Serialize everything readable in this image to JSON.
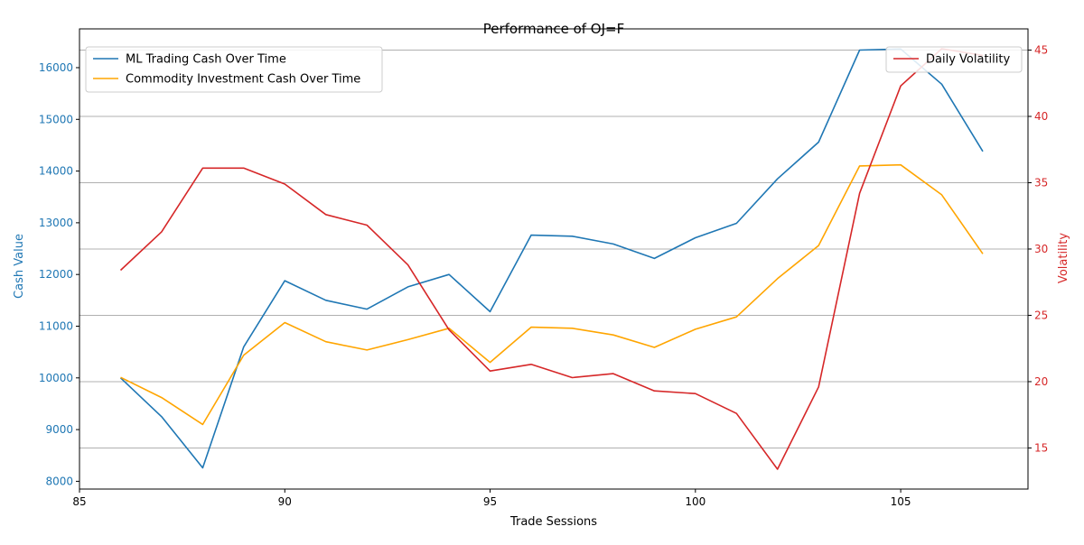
{
  "chart_data": {
    "type": "line",
    "title": "Performance of OJ=F",
    "xlabel": "Trade Sessions",
    "ylabel_left": "Cash Value",
    "ylabel_right": "Volatility",
    "x": [
      86,
      87,
      88,
      89,
      90,
      91,
      92,
      93,
      94,
      95,
      96,
      97,
      98,
      99,
      100,
      101,
      102,
      103,
      104,
      105,
      106,
      107
    ],
    "xlim": [
      85,
      108.1
    ],
    "xticks": [
      85,
      90,
      95,
      100,
      105
    ],
    "ylim_left": [
      7850,
      16750
    ],
    "yticks_left": [
      8000,
      9000,
      10000,
      11000,
      12000,
      13000,
      14000,
      15000,
      16000
    ],
    "ylim_right": [
      11.9,
      46.6
    ],
    "yticks_right": [
      15,
      20,
      25,
      30,
      35,
      40,
      45
    ],
    "grid": "horizontal gridlines at right-axis ticks",
    "legend_left_placement": "top-left",
    "legend_right_placement": "top-right",
    "series": [
      {
        "name": "ML Trading Cash Over Time",
        "axis": "left",
        "color": "#1f77b4",
        "values": [
          10000,
          9250,
          8260,
          10600,
          11880,
          11500,
          11330,
          11760,
          12000,
          11280,
          12760,
          12740,
          12590,
          12310,
          12710,
          12990,
          13850,
          14560,
          16340,
          16360,
          15680,
          14380
        ]
      },
      {
        "name": "Commodity Investment Cash Over Time",
        "axis": "left",
        "color": "#ffa500",
        "values": [
          10010,
          9620,
          9100,
          10440,
          11070,
          10700,
          10540,
          10740,
          10960,
          10300,
          10980,
          10960,
          10830,
          10590,
          10940,
          11180,
          11920,
          12560,
          14100,
          14120,
          13540,
          12400
        ]
      },
      {
        "name": "Daily Volatility",
        "axis": "right",
        "color": "#d62728",
        "values": [
          28.4,
          31.3,
          36.1,
          36.1,
          34.9,
          32.6,
          31.8,
          28.8,
          23.9,
          20.8,
          21.3,
          20.3,
          20.6,
          19.3,
          19.1,
          17.6,
          13.4,
          19.6,
          34.2,
          42.3,
          45.1,
          44.6
        ]
      }
    ]
  }
}
